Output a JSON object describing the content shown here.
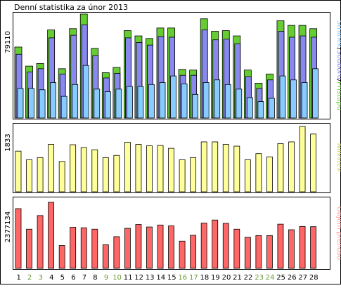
{
  "title": "Denní statistika za únor 2013",
  "colors": {
    "frame": "#000000",
    "weekend_label": "#669933",
    "hits": "#66cc33",
    "files": "#8888ee",
    "pages": "#88ccff",
    "visits": "#ffff99",
    "kbytes": "#ff6666",
    "visits_label": "#cccc66",
    "kbytes_label": "#ff9999"
  },
  "chart_data": [
    {
      "type": "bar",
      "panel": "hits",
      "ylabel": "79110",
      "ylim": [
        0,
        79110
      ],
      "legend_words": [
        "Stránek",
        "Souborů",
        "Přístupů"
      ],
      "categories": [
        "1",
        "2",
        "3",
        "4",
        "5",
        "6",
        "7",
        "8",
        "9",
        "10",
        "11",
        "12",
        "13",
        "14",
        "15",
        "16",
        "17",
        "18",
        "19",
        "20",
        "21",
        "22",
        "23",
        "24",
        "25",
        "26",
        "27",
        "28"
      ],
      "weekend_days": [
        "2",
        "3",
        "9",
        "10",
        "16",
        "17",
        "23",
        "24"
      ],
      "series": [
        {
          "name": "Přístupů",
          "values": [
            54000,
            39500,
            41500,
            67000,
            37500,
            68000,
            79110,
            53000,
            34500,
            38500,
            66500,
            62500,
            60500,
            68500,
            68500,
            37000,
            36500,
            75500,
            66000,
            66500,
            62500,
            36500,
            26500,
            33500,
            74000,
            70500,
            70500,
            68000
          ]
        },
        {
          "name": "Souborů",
          "values": [
            48500,
            35000,
            37500,
            61000,
            33500,
            63000,
            71000,
            47500,
            30500,
            34000,
            61000,
            57500,
            55500,
            62000,
            61500,
            32500,
            32500,
            67000,
            59500,
            60000,
            56500,
            31500,
            22500,
            29000,
            66000,
            61500,
            62500,
            61500
          ]
        },
        {
          "name": "Stránek",
          "values": [
            22500,
            22500,
            21500,
            27000,
            16500,
            25500,
            40000,
            22000,
            20000,
            22000,
            24000,
            24000,
            25500,
            27000,
            32000,
            26000,
            18000,
            27000,
            29000,
            25500,
            22000,
            15500,
            12500,
            15000,
            32000,
            29000,
            27000,
            37500
          ]
        }
      ]
    },
    {
      "type": "bar",
      "panel": "visits",
      "ylabel": "1833",
      "ylim": [
        0,
        1833
      ],
      "legend_words": [
        "Návštěv"
      ],
      "categories": [
        "1",
        "2",
        "3",
        "4",
        "5",
        "6",
        "7",
        "8",
        "9",
        "10",
        "11",
        "12",
        "13",
        "14",
        "15",
        "16",
        "17",
        "18",
        "19",
        "20",
        "21",
        "22",
        "23",
        "24",
        "25",
        "26",
        "27",
        "28"
      ],
      "series": [
        {
          "name": "Návštěv",
          "values": [
            1140,
            900,
            960,
            1330,
            850,
            1320,
            1240,
            1180,
            960,
            1020,
            1390,
            1330,
            1290,
            1300,
            1220,
            900,
            960,
            1400,
            1400,
            1330,
            1280,
            900,
            1070,
            980,
            1350,
            1400,
            1833,
            1620
          ]
        }
      ]
    },
    {
      "type": "bar",
      "panel": "kbytes",
      "ylabel": "2377134",
      "ylim": [
        0,
        2377134
      ],
      "legend_words": [
        "Objem přenosu"
      ],
      "categories": [
        "1",
        "2",
        "3",
        "4",
        "5",
        "6",
        "7",
        "8",
        "9",
        "10",
        "11",
        "12",
        "13",
        "14",
        "15",
        "16",
        "17",
        "18",
        "19",
        "20",
        "21",
        "22",
        "23",
        "24",
        "25",
        "26",
        "27",
        "28"
      ],
      "series": [
        {
          "name": "Objem přenosu",
          "values": [
            2150000,
            1410000,
            1900000,
            2377134,
            820000,
            1480000,
            1460000,
            1410000,
            850000,
            1140000,
            1440000,
            1580000,
            1490000,
            1560000,
            1530000,
            980000,
            1190000,
            1630000,
            1740000,
            1620000,
            1410000,
            1120000,
            1180000,
            1180000,
            1590000,
            1390000,
            1510000,
            1500000
          ]
        }
      ]
    }
  ]
}
